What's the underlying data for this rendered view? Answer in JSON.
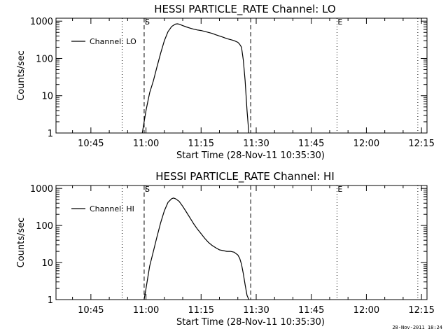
{
  "footer": {
    "timestamp": "28-Nov-2011 18:24"
  },
  "chart_data": [
    {
      "type": "line",
      "title": "HESSI PARTICLE_RATE Channel: LO",
      "xlabel": "Start Time (28-Nov-11 10:35:30)",
      "ylabel": "Counts/sec",
      "yscale": "log",
      "ylim": [
        1,
        1200
      ],
      "xlim": [
        "10:35:30",
        "12:16:30"
      ],
      "x_ticks": [
        "10:45",
        "11:00",
        "11:15",
        "11:30",
        "11:45",
        "12:00",
        "12:15"
      ],
      "y_ticks": [
        "1",
        "10",
        "100",
        "1000"
      ],
      "legend": {
        "placement": "top-left",
        "entries": [
          "Channel: LO"
        ]
      },
      "markers": [
        {
          "time": "10:53:30",
          "style": "dotted",
          "label": ""
        },
        {
          "time": "10:59:30",
          "style": "dashed",
          "label": "S"
        },
        {
          "time": "11:28:30",
          "style": "dashed",
          "label": ""
        },
        {
          "time": "11:52:00",
          "style": "dotted",
          "label": "E"
        },
        {
          "time": "12:14:00",
          "style": "dotted",
          "label": ""
        }
      ],
      "series": [
        {
          "name": "Channel: LO",
          "x": [
            "10:59:00",
            "10:59:30",
            "11:00:00",
            "11:00:30",
            "11:01:00",
            "11:02:00",
            "11:03:00",
            "11:04:00",
            "11:05:00",
            "11:06:00",
            "11:07:00",
            "11:08:00",
            "11:08:30",
            "11:09:00",
            "11:10:00",
            "11:11:00",
            "11:12:00",
            "11:13:00",
            "11:14:00",
            "11:15:00",
            "11:16:00",
            "11:17:00",
            "11:18:00",
            "11:19:00",
            "11:20:00",
            "11:21:00",
            "11:22:00",
            "11:23:00",
            "11:24:00",
            "11:25:00",
            "11:25:30",
            "11:26:00",
            "11:26:30",
            "11:27:00",
            "11:27:30",
            "11:28:00"
          ],
          "y": [
            1,
            2,
            4,
            7,
            12,
            25,
            60,
            140,
            300,
            520,
            720,
            830,
            850,
            830,
            760,
            700,
            650,
            610,
            580,
            560,
            530,
            500,
            470,
            430,
            400,
            370,
            340,
            320,
            300,
            270,
            240,
            200,
            90,
            25,
            4,
            1
          ]
        }
      ]
    },
    {
      "type": "line",
      "title": "HESSI PARTICLE_RATE Channel: HI",
      "xlabel": "Start Time (28-Nov-11 10:35:30)",
      "ylabel": "Counts/sec",
      "yscale": "log",
      "ylim": [
        1,
        1200
      ],
      "xlim": [
        "10:35:30",
        "12:16:30"
      ],
      "x_ticks": [
        "10:45",
        "11:00",
        "11:15",
        "11:30",
        "11:45",
        "12:00",
        "12:15"
      ],
      "y_ticks": [
        "1",
        "10",
        "100",
        "1000"
      ],
      "legend": {
        "placement": "top-left",
        "entries": [
          "Channel: HI"
        ]
      },
      "markers": [
        {
          "time": "10:53:30",
          "style": "dotted",
          "label": ""
        },
        {
          "time": "10:59:30",
          "style": "dashed",
          "label": "S"
        },
        {
          "time": "11:28:30",
          "style": "dashed",
          "label": ""
        },
        {
          "time": "11:52:00",
          "style": "dotted",
          "label": "E"
        },
        {
          "time": "12:14:00",
          "style": "dotted",
          "label": ""
        }
      ],
      "series": [
        {
          "name": "Channel: HI",
          "x": [
            "10:59:30",
            "11:00:00",
            "11:00:30",
            "11:01:00",
            "11:02:00",
            "11:03:00",
            "11:04:00",
            "11:05:00",
            "11:06:00",
            "11:07:00",
            "11:07:30",
            "11:08:00",
            "11:09:00",
            "11:10:00",
            "11:11:00",
            "11:12:00",
            "11:13:00",
            "11:14:00",
            "11:15:00",
            "11:16:00",
            "11:17:00",
            "11:18:00",
            "11:19:00",
            "11:20:00",
            "11:21:00",
            "11:22:00",
            "11:23:00",
            "11:24:00",
            "11:25:00",
            "11:25:30",
            "11:26:00",
            "11:26:30",
            "11:27:00",
            "11:27:30",
            "11:28:00"
          ],
          "y": [
            1,
            2,
            4,
            8,
            20,
            50,
            120,
            250,
            420,
            530,
            550,
            530,
            450,
            330,
            230,
            160,
            110,
            80,
            60,
            45,
            35,
            29,
            25,
            22,
            21,
            20,
            20,
            19,
            16,
            13,
            9,
            5,
            2.5,
            1.3,
            1
          ]
        }
      ]
    }
  ]
}
